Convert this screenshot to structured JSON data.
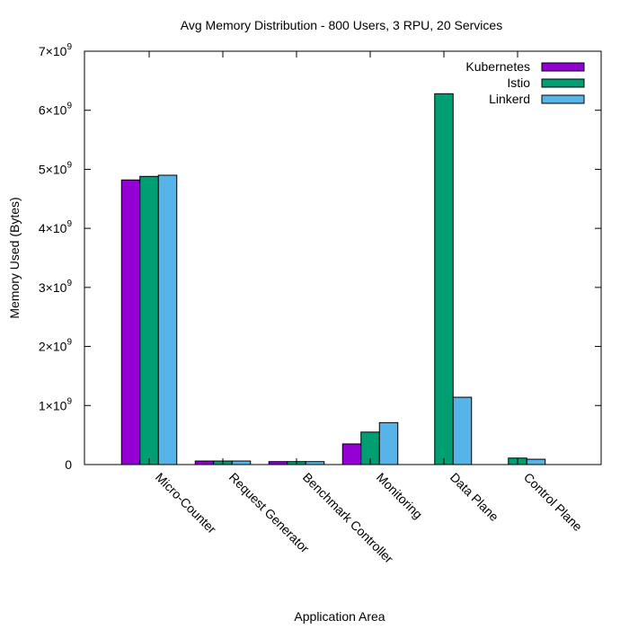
{
  "chart_data": {
    "type": "bar",
    "title": "Avg Memory Distribution - 800 Users, 3 RPU, 20 Services",
    "xlabel": "Application Area",
    "ylabel": "Memory Used (Bytes)",
    "ylim": [
      0,
      7000000000
    ],
    "y_ticks": [
      {
        "value": 0,
        "label": "0"
      },
      {
        "value": 1000000000,
        "label": "1×10",
        "exp": "9"
      },
      {
        "value": 2000000000,
        "label": "2×10",
        "exp": "9"
      },
      {
        "value": 3000000000,
        "label": "3×10",
        "exp": "9"
      },
      {
        "value": 4000000000,
        "label": "4×10",
        "exp": "9"
      },
      {
        "value": 5000000000,
        "label": "5×10",
        "exp": "9"
      },
      {
        "value": 6000000000,
        "label": "6×10",
        "exp": "9"
      },
      {
        "value": 7000000000,
        "label": "7×10",
        "exp": "9"
      }
    ],
    "categories": [
      "Micro-Counter",
      "Request Generator",
      "Benchmark Controller",
      "Monitoring",
      "Data Plane",
      "Control Plane"
    ],
    "series": [
      {
        "name": "Kubernetes",
        "color": "#9400d3",
        "values": [
          4820000000,
          60000000,
          50000000,
          350000000,
          0,
          0
        ]
      },
      {
        "name": "Istio",
        "color": "#009e73",
        "values": [
          4880000000,
          60000000,
          50000000,
          550000000,
          6280000000,
          110000000
        ]
      },
      {
        "name": "Linkerd",
        "color": "#56b4e9",
        "values": [
          4900000000,
          60000000,
          50000000,
          710000000,
          1140000000,
          90000000
        ]
      }
    ],
    "legend_position": "top-right",
    "grid": false
  }
}
